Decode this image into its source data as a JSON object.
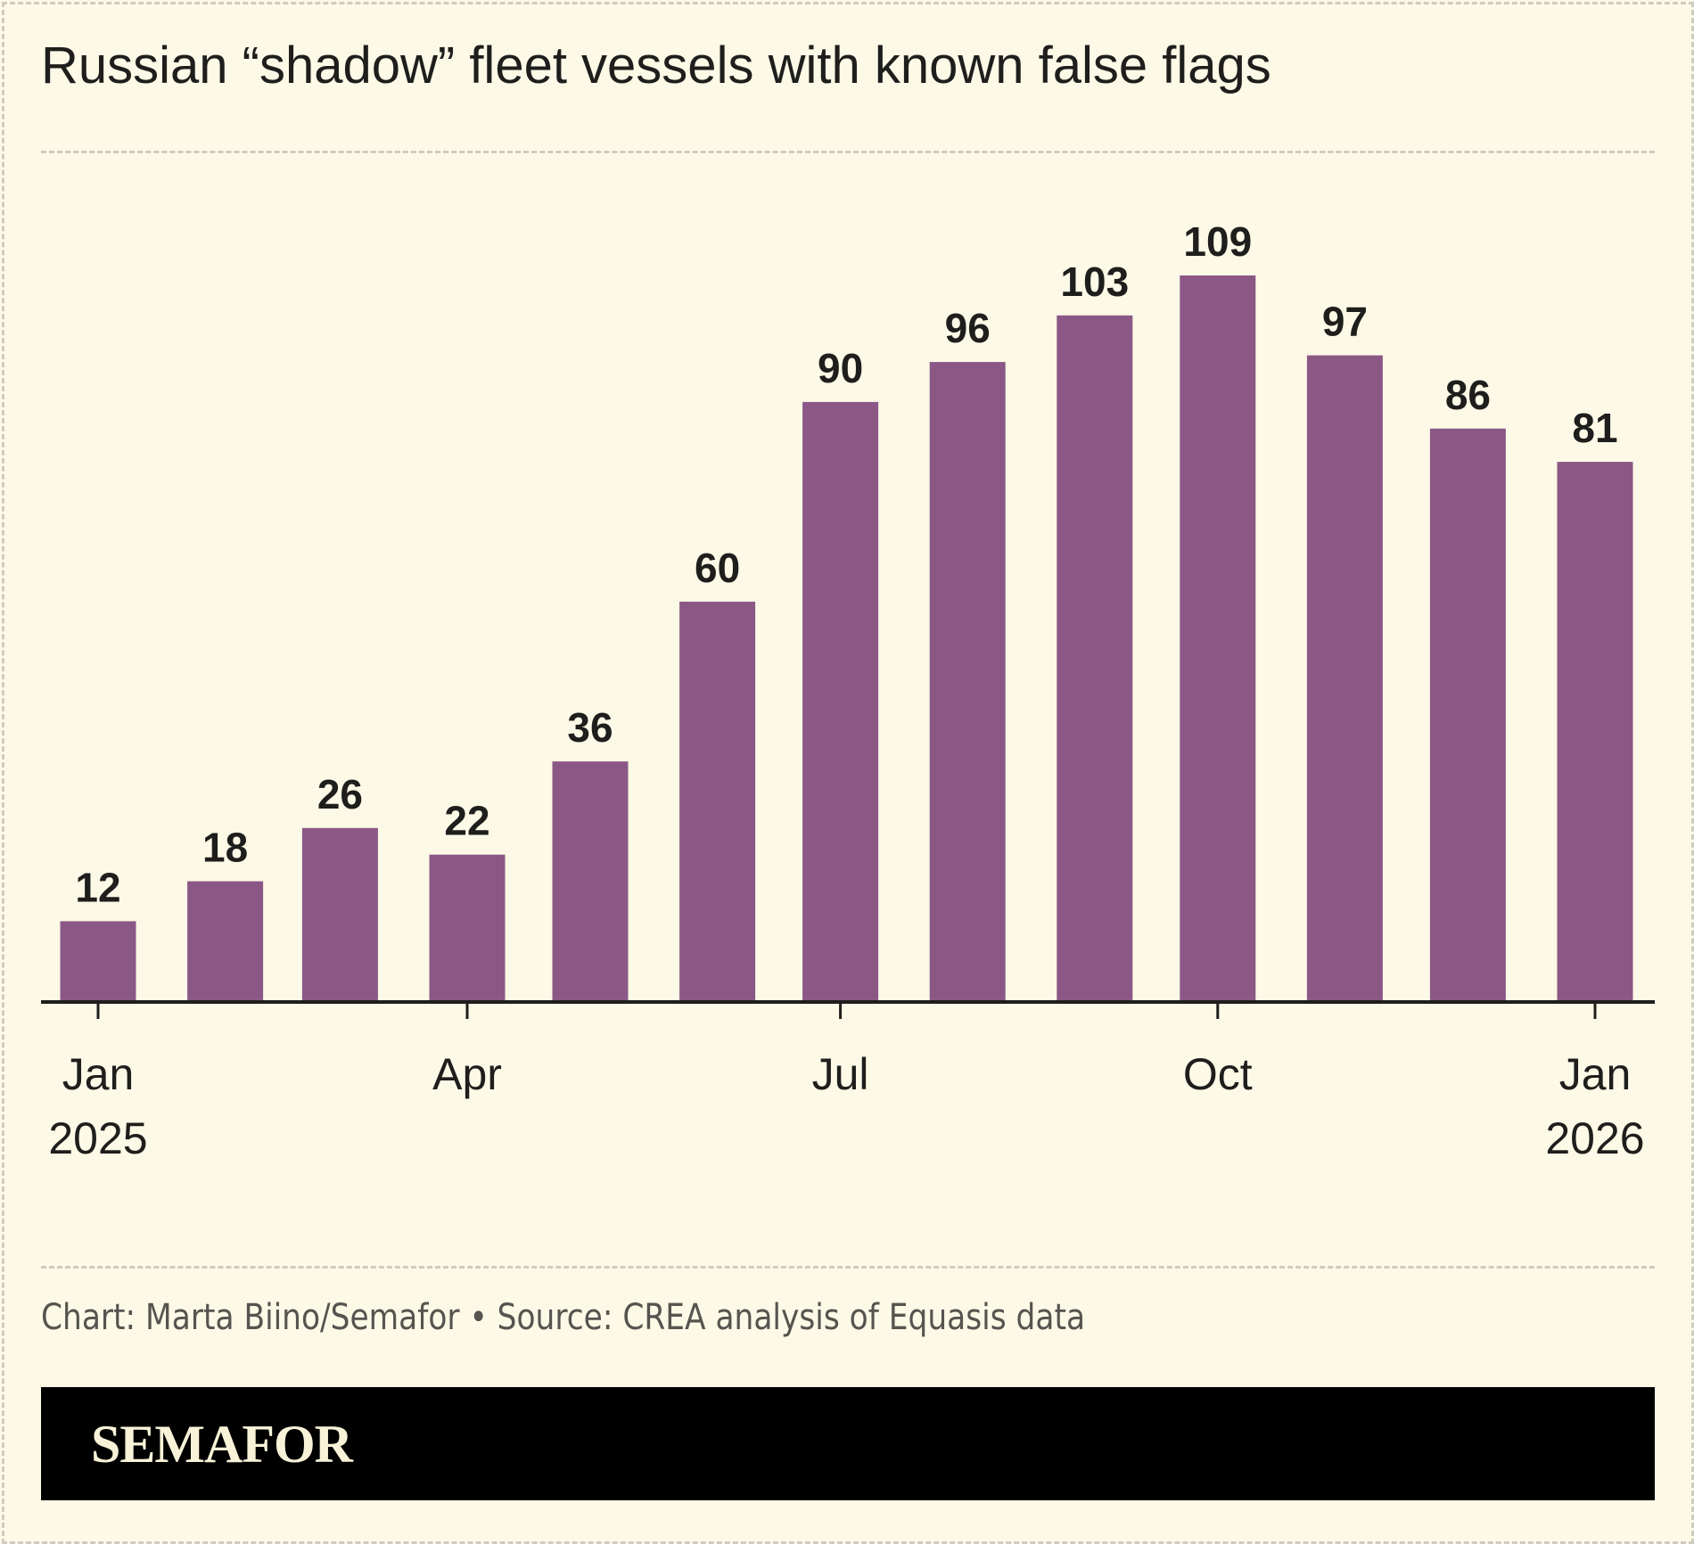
{
  "chart_data": {
    "type": "bar",
    "title": "Russian “shadow” fleet vessels with known false flags",
    "categories": [
      "2025-01",
      "2025-02",
      "2025-03",
      "2025-04",
      "2025-05",
      "2025-06",
      "2025-07",
      "2025-08",
      "2025-09",
      "2025-10",
      "2025-11",
      "2025-12",
      "2026-01"
    ],
    "values": [
      12,
      18,
      26,
      22,
      36,
      60,
      90,
      96,
      103,
      109,
      97,
      86,
      81
    ],
    "x_ticks": [
      {
        "date": "2025-01",
        "line1": "Jan",
        "line2": "2025"
      },
      {
        "date": "2025-04",
        "line1": "Apr",
        "line2": ""
      },
      {
        "date": "2025-07",
        "line1": "Jul",
        "line2": ""
      },
      {
        "date": "2025-10",
        "line1": "Oct",
        "line2": ""
      },
      {
        "date": "2026-01",
        "line1": "Jan",
        "line2": "2026"
      }
    ],
    "ylim": [
      0,
      109
    ],
    "grid": false,
    "data_labels": true,
    "bar_color": "#8b5886"
  },
  "footer": {
    "source": "Chart: Marta Biino/Semafor • Source: CREA analysis of Equasis data",
    "logo": "SEMAFOR"
  },
  "colors": {
    "background": "#fcf9e7",
    "text": "#1e1e1c",
    "bar": "#8b5886",
    "band": "#000000"
  }
}
